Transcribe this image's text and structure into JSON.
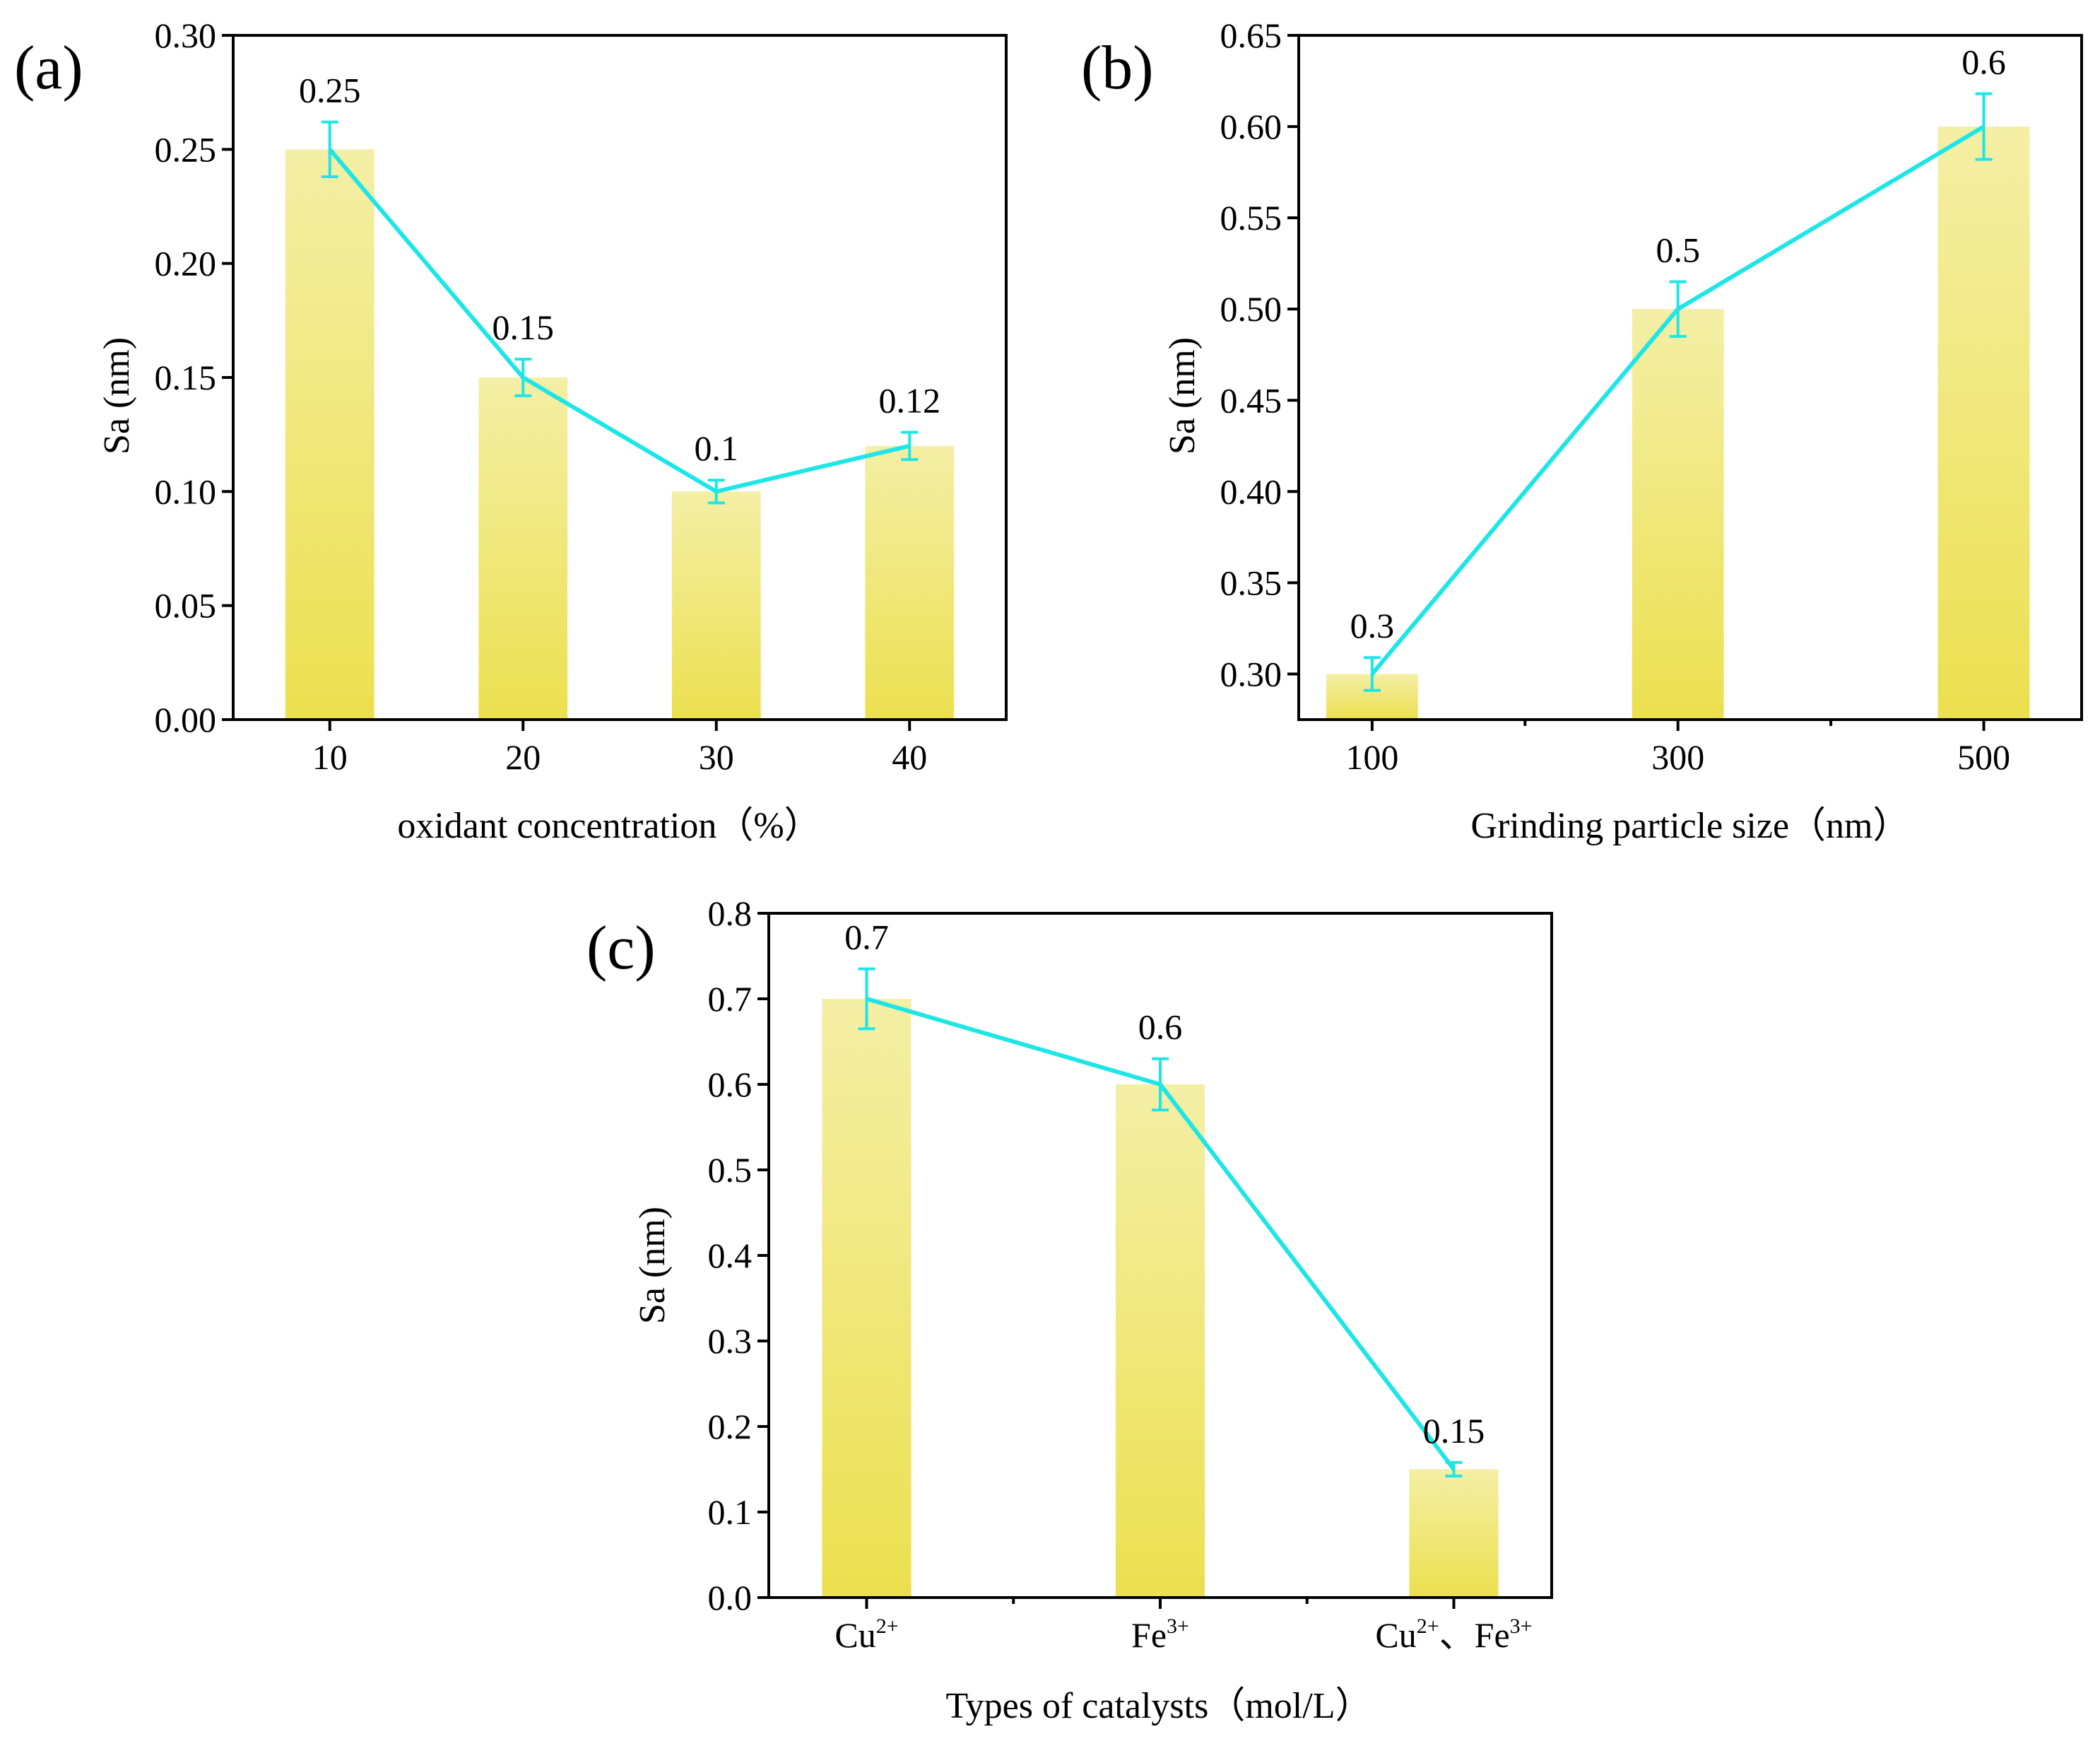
{
  "figure": {
    "bar_color_top": "#F4EFA6",
    "bar_color_bottom": "#ECE04F",
    "line_color": "#1EE6E6",
    "axis_color": "#000000"
  },
  "chart_data": [
    {
      "panel": "(a)",
      "type": "bar",
      "overlay": "line-with-error-bars",
      "categories": [
        "10",
        "20",
        "30",
        "40"
      ],
      "values": [
        0.25,
        0.15,
        0.1,
        0.12
      ],
      "errors": [
        0.012,
        0.008,
        0.005,
        0.006
      ],
      "data_labels": [
        "0.25",
        "0.15",
        "0.1",
        "0.12"
      ],
      "xlabel": "oxidant concentration（%）",
      "ylabel": "Sa (nm)",
      "ylim": [
        0,
        0.3
      ],
      "yticks": [
        "0.00",
        "0.05",
        "0.10",
        "0.15",
        "0.20",
        "0.25",
        "0.30"
      ],
      "ytick_values": [
        0,
        0.05,
        0.1,
        0.15,
        0.2,
        0.25,
        0.3
      ],
      "xlim": [
        0,
        4
      ],
      "x_positions": [
        0.5,
        1.5,
        2.5,
        3.5
      ],
      "xtick_values": [
        0.5,
        1.5,
        2.5,
        3.5
      ],
      "minor_xticks": [],
      "bar_width": 0.46
    },
    {
      "panel": "(b)",
      "type": "bar",
      "overlay": "line-with-error-bars",
      "categories": [
        "100",
        "300",
        "500"
      ],
      "values": [
        0.3,
        0.5,
        0.6
      ],
      "errors": [
        0.009,
        0.015,
        0.018
      ],
      "data_labels": [
        "0.3",
        "0.5",
        "0.6"
      ],
      "xlabel": "Grinding particle size（nm）",
      "ylabel": "Sa (nm)",
      "ylim": [
        0.275,
        0.65
      ],
      "yticks": [
        "0.30",
        "0.35",
        "0.40",
        "0.45",
        "0.50",
        "0.55",
        "0.60",
        "0.65"
      ],
      "ytick_values": [
        0.3,
        0.35,
        0.4,
        0.45,
        0.5,
        0.55,
        0.6,
        0.65
      ],
      "xlim": [
        0,
        6.4
      ],
      "x_positions": [
        0.6,
        3.1,
        5.6
      ],
      "xtick_values": [
        0.6,
        3.1,
        5.6
      ],
      "minor_xticks": [
        1.85,
        4.35
      ],
      "bar_width": 0.75
    },
    {
      "panel": "(c)",
      "type": "bar",
      "overlay": "line-with-error-bars",
      "categories": [
        "Cu",
        "Fe",
        "Cu、Fe"
      ],
      "category_superscripts": [
        [
          "2+"
        ],
        [
          "3+"
        ],
        [
          "2+",
          "3+"
        ]
      ],
      "values": [
        0.7,
        0.6,
        0.15
      ],
      "errors": [
        0.035,
        0.03,
        0.008
      ],
      "data_labels": [
        "0.7",
        "0.6",
        "0.15"
      ],
      "xlabel": "Types of catalysts（mol/L）",
      "ylabel": "Sa (nm)",
      "ylim": [
        0,
        0.8
      ],
      "yticks": [
        "0.0",
        "0.1",
        "0.2",
        "0.3",
        "0.4",
        "0.5",
        "0.6",
        "0.7",
        "0.8"
      ],
      "ytick_values": [
        0,
        0.1,
        0.2,
        0.3,
        0.4,
        0.5,
        0.6,
        0.7,
        0.8
      ],
      "xlim": [
        0,
        3.6
      ],
      "x_positions": [
        0.45,
        1.8,
        3.15
      ],
      "xtick_values": [
        0.45,
        1.8,
        3.15
      ],
      "minor_xticks": [
        1.125,
        2.475
      ],
      "bar_width": 0.41
    }
  ]
}
